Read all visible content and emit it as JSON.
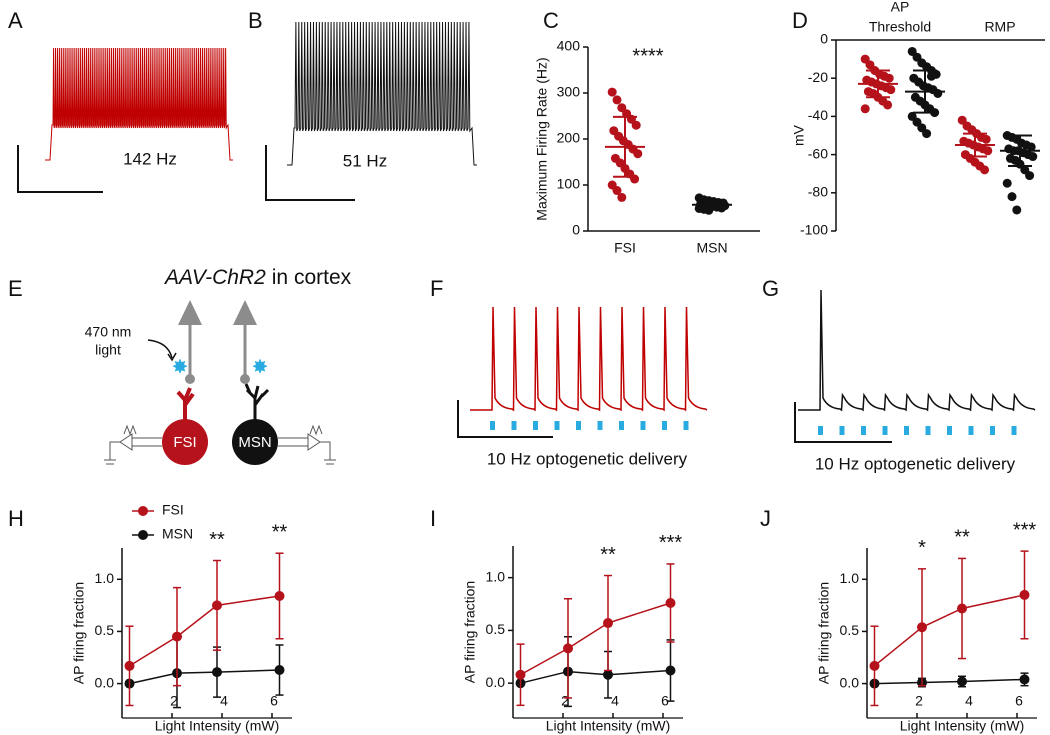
{
  "panel_labels": [
    "A",
    "B",
    "C",
    "D",
    "E",
    "F",
    "G",
    "H",
    "I",
    "J"
  ],
  "trace_labels": [
    "142 Hz",
    "51 Hz",
    "10 Hz optogenetic delivery",
    "10 Hz optogenetic delivery"
  ],
  "diagram": {
    "title": [
      "AAV-ChR2",
      "in cortex"
    ],
    "light": [
      "470 nm",
      "light"
    ],
    "cells": [
      "FSI",
      "MSN"
    ]
  },
  "chart_data": [
    {
      "type": "dot",
      "ylabel": "Maximum Firing Rate (Hz)",
      "annotation": "****",
      "categories": [
        "FSI",
        "MSN"
      ],
      "ylim": [
        0,
        400
      ],
      "yticks": [
        0,
        100,
        200,
        300,
        400
      ],
      "columns": [
        {
          "color": "#b5121b",
          "mean": 183,
          "sd": 65,
          "values": [
            302,
            285,
            268,
            255,
            243,
            230,
            218,
            206,
            196,
            188,
            178,
            168,
            158,
            148,
            136,
            124,
            113,
            100,
            88,
            73
          ]
        },
        {
          "color": "#111111",
          "mean": 57,
          "sd": 8,
          "values": [
            72,
            68,
            66,
            64,
            62,
            61,
            60,
            59,
            58,
            57,
            56,
            55,
            55,
            54,
            53,
            52,
            50,
            49,
            47,
            45
          ]
        }
      ]
    },
    {
      "type": "dot",
      "ylabel": "mV",
      "group_labels": [
        [
          "AP",
          "Threshold"
        ],
        [
          "RMP"
        ]
      ],
      "ylim": [
        -100,
        0
      ],
      "yticks": [
        -100,
        -80,
        -60,
        -40,
        -20,
        0
      ],
      "columns": [
        {
          "color": "#b5121b",
          "mean": -23,
          "sd": 7,
          "values": [
            -10,
            -13,
            -16,
            -18,
            -19,
            -20,
            -21,
            -22,
            -23,
            -24,
            -25,
            -26,
            -27,
            -28,
            -30,
            -32,
            -34,
            -36
          ]
        },
        {
          "color": "#111111",
          "mean": -27,
          "sd": 11,
          "values": [
            -6,
            -9,
            -12,
            -14,
            -16,
            -18,
            -20,
            -22,
            -24,
            -25,
            -26,
            -28,
            -30,
            -32,
            -34,
            -36,
            -38,
            -40,
            -43,
            -46,
            -49,
            -19
          ]
        },
        {
          "color": "#b5121b",
          "mean": -55,
          "sd": 6,
          "values": [
            -42,
            -45,
            -47,
            -49,
            -51,
            -52,
            -53,
            -54,
            -55,
            -56,
            -57,
            -58,
            -60,
            -62,
            -64,
            -66,
            -68
          ]
        },
        {
          "color": "#111111",
          "mean": -58,
          "sd": 8,
          "values": [
            -50,
            -51,
            -52,
            -54,
            -55,
            -56,
            -57,
            -58,
            -58,
            -59,
            -60,
            -61,
            -62,
            -63,
            -65,
            -68,
            -71,
            -75,
            -82,
            -89
          ]
        }
      ]
    },
    {
      "type": "line",
      "xlabel": "Light Intensity (mW)",
      "ylabel": "AP firing fraction",
      "legend": "upper left",
      "x": [
        0.3,
        2.2,
        3.8,
        6.3
      ],
      "xlim": [
        0,
        6.8
      ],
      "xticks": [
        2,
        4,
        6
      ],
      "ylim": [
        -0.33,
        1.3
      ],
      "yticks": [
        {
          "value": 0,
          "label": "0.0"
        },
        {
          "value": 0.5,
          "label": "0.5"
        },
        {
          "value": 1,
          "label": "1.0"
        }
      ],
      "annotations": [
        null,
        null,
        "**",
        "**"
      ],
      "series": [
        {
          "name": "FSI",
          "color": "#b5121b",
          "values": [
            0.17,
            0.45,
            0.75,
            0.84
          ],
          "errors": [
            0.38,
            0.47,
            0.43,
            0.41
          ]
        },
        {
          "name": "MSN",
          "color": "#111111",
          "values": [
            0,
            0.1,
            0.11,
            0.13
          ],
          "errors": [
            0,
            0.33,
            0.24,
            0.24
          ]
        }
      ]
    },
    {
      "type": "line",
      "xlabel": "Light Intensity (mW)",
      "ylabel": "AP firing fraction",
      "x": [
        0.3,
        2.2,
        3.8,
        6.3
      ],
      "xlim": [
        0,
        6.8
      ],
      "xticks": [
        2,
        4,
        6
      ],
      "ylim": [
        -0.33,
        1.3
      ],
      "yticks": [
        {
          "value": 0,
          "label": "0.0"
        },
        {
          "value": 0.5,
          "label": "0.5"
        },
        {
          "value": 1,
          "label": "1.0"
        }
      ],
      "annotations": [
        null,
        null,
        "**",
        "***"
      ],
      "series": [
        {
          "color": "#b5121b",
          "values": [
            0.08,
            0.33,
            0.57,
            0.76
          ],
          "errors": [
            0.29,
            0.47,
            0.45,
            0.37
          ]
        },
        {
          "color": "#111111",
          "values": [
            0,
            0.11,
            0.08,
            0.12
          ],
          "errors": [
            0,
            0.33,
            0.22,
            0.29
          ]
        }
      ]
    },
    {
      "type": "line",
      "xlabel": "Light Intensity (mW)",
      "ylabel": "AP firing fraction",
      "x": [
        0.3,
        2.2,
        3.8,
        6.3
      ],
      "xlim": [
        0,
        6.8
      ],
      "xticks": [
        2,
        4,
        6
      ],
      "ylim": [
        -0.33,
        1.3
      ],
      "yticks": [
        {
          "value": 0,
          "label": "0.0"
        },
        {
          "value": 0.5,
          "label": "0.5"
        },
        {
          "value": 1,
          "label": "1.0"
        }
      ],
      "annotations": [
        null,
        "*",
        "**",
        "***"
      ],
      "series": [
        {
          "color": "#b5121b",
          "values": [
            0.17,
            0.54,
            0.72,
            0.85
          ],
          "errors": [
            0.38,
            0.56,
            0.48,
            0.42
          ]
        },
        {
          "color": "#111111",
          "values": [
            0,
            0.01,
            0.02,
            0.04
          ],
          "errors": [
            0,
            0.04,
            0.05,
            0.06
          ]
        }
      ]
    }
  ]
}
